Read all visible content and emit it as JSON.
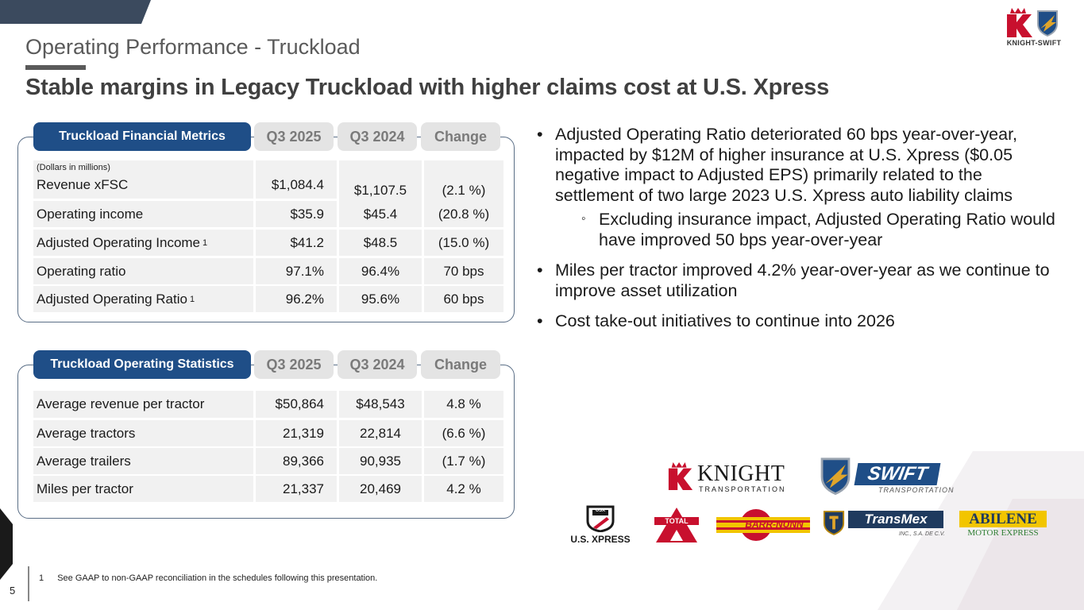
{
  "slide": {
    "section_title": "Operating Performance - Truckload",
    "headline": "Stable margins in Legacy Truckload with higher claims cost at U.S. Xpress",
    "page_number": "5"
  },
  "logo": {
    "text": "KNIGHT-SWIFT",
    "icon_left": "knight-k-icon",
    "icon_right": "swift-shield-icon"
  },
  "financial_table": {
    "header": "Truckload Financial Metrics",
    "columns": [
      "Q3 2025",
      "Q3 2024",
      "Change"
    ],
    "units_note": "(Dollars in millions)",
    "rows": [
      {
        "label": "Revenue xFSC",
        "sup": "",
        "q3_2025": "$1,084.4",
        "q3_2024": "$1,107.5",
        "change": "(2.1 %)"
      },
      {
        "label": "Operating income",
        "sup": "",
        "q3_2025": "$35.9",
        "q3_2024": "$45.4",
        "change": "(20.8 %)"
      },
      {
        "label": "Adjusted Operating Income",
        "sup": "1",
        "q3_2025": "$41.2",
        "q3_2024": "$48.5",
        "change": "(15.0 %)"
      },
      {
        "label": "Operating ratio",
        "sup": "",
        "q3_2025": "97.1%",
        "q3_2024": "96.4%",
        "change": "70 bps"
      },
      {
        "label": "Adjusted Operating Ratio",
        "sup": "1",
        "q3_2025": "96.2%",
        "q3_2024": "95.6%",
        "change": "60 bps"
      }
    ]
  },
  "statistics_table": {
    "header": "Truckload Operating Statistics",
    "columns": [
      "Q3 2025",
      "Q3 2024",
      "Change"
    ],
    "rows": [
      {
        "label": "Average revenue per tractor",
        "q3_2025": "$50,864",
        "q3_2024": "$48,543",
        "change": "4.8 %"
      },
      {
        "label": "Average tractors",
        "q3_2025": "21,319",
        "q3_2024": "22,814",
        "change": "(6.6 %)"
      },
      {
        "label": "Average trailers",
        "q3_2025": "89,366",
        "q3_2024": "90,935",
        "change": "(1.7 %)"
      },
      {
        "label": "Miles per tractor",
        "q3_2025": "21,337",
        "q3_2024": "20,469",
        "change": "4.2 %"
      }
    ]
  },
  "bullets": [
    {
      "text": "Adjusted Operating Ratio deteriorated 60 bps year-over-year, impacted by $12M of higher insurance at U.S. Xpress ($0.05 negative impact to Adjusted EPS) primarily related to the settlement of two large 2023 U.S. Xpress auto liability claims",
      "sub": "Excluding insurance impact, Adjusted Operating Ratio would have improved 50 bps year-over-year"
    },
    {
      "text": "Miles per tractor improved 4.2% year-over-year as we continue to improve asset utilization",
      "sub": ""
    },
    {
      "text": "Cost take-out initiatives to continue into 2026",
      "sub": ""
    }
  ],
  "brands": {
    "knight": {
      "name": "KNIGHT",
      "tagline": "TRANSPORTATION"
    },
    "swift": {
      "name": "SWIFT",
      "tagline": "TRANSPORTATION"
    },
    "usx": {
      "badge": "USX",
      "name": "U.S. XPRESS"
    },
    "total": {
      "name": "TOTAL"
    },
    "barr_nunn": {
      "name": "BARR-NUNN"
    },
    "transmex": {
      "name": "TransMex",
      "tagline": "INC., S.A. DE C.V."
    },
    "abilene": {
      "name": "ABILENE",
      "tagline": "MOTOR EXPRESS"
    }
  },
  "colors": {
    "header_blue": "#1f4e87",
    "header_gray": "#e4e4e4",
    "cell_bg": "#f1f1f1",
    "knight_red": "#c8102e"
  },
  "footnote": {
    "mark": "1",
    "text": "See GAAP to non-GAAP reconciliation in the schedules following this presentation."
  }
}
